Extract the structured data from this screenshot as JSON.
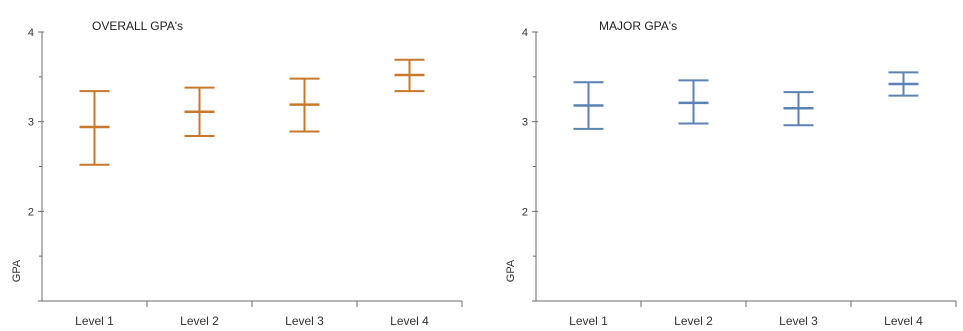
{
  "chart_data": [
    {
      "type": "errorbar",
      "title": "OVERALL GPA's",
      "ylabel": "GPA",
      "xlabel": "",
      "ylim": [
        1,
        4
      ],
      "yticks": [
        1,
        2,
        3,
        4
      ],
      "yticklabels": [
        "",
        "2",
        "3",
        "4"
      ],
      "categories": [
        "Level 1",
        "Level 2",
        "Level 3",
        "Level 4"
      ],
      "color": "#c8782a",
      "series": [
        {
          "mean": [
            2.94,
            3.11,
            3.19,
            3.52
          ],
          "lower": [
            2.52,
            2.84,
            2.89,
            3.34
          ],
          "upper": [
            3.34,
            3.38,
            3.48,
            3.69
          ]
        }
      ],
      "grid": false
    },
    {
      "type": "errorbar",
      "title": "MAJOR GPA's",
      "ylabel": "GPA",
      "xlabel": "",
      "ylim": [
        1,
        4
      ],
      "yticks": [
        1,
        2,
        3,
        4
      ],
      "yticklabels": [
        "",
        "2",
        "3",
        "4"
      ],
      "categories": [
        "Level 1",
        "Level 2",
        "Level 3",
        "Level 4"
      ],
      "color": "#5a82b4",
      "series": [
        {
          "mean": [
            3.18,
            3.21,
            3.15,
            3.42
          ],
          "lower": [
            2.92,
            2.98,
            2.96,
            3.29
          ],
          "upper": [
            3.44,
            3.46,
            3.33,
            3.55
          ]
        }
      ],
      "grid": false
    }
  ]
}
